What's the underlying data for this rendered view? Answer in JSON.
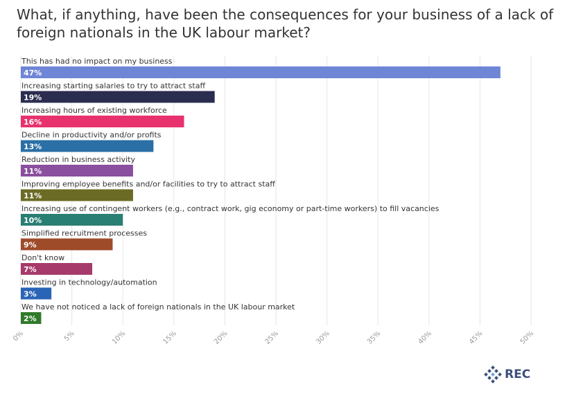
{
  "chart_data": {
    "type": "bar",
    "orientation": "horizontal",
    "title": "What, if anything, have been the consequences for your business of a lack of foreign nationals in the UK labour market?",
    "categories": [
      "This has had no impact on my business",
      "Increasing starting salaries to try to attract staff",
      "Increasing hours of existing workforce",
      "Decline in productivity and/or profits",
      "Reduction in business activity",
      "Improving employee benefits and/or facilities to try to attract staff",
      "Increasing use of contingent workers (e.g., contract work, gig economy or part-time workers) to fill vacancies",
      "Simplified recruitment processes",
      "Don't know",
      "Investing in technology/automation",
      "We have not noticed a lack of foreign nationals in the UK labour market"
    ],
    "values": [
      47,
      19,
      16,
      13,
      11,
      11,
      10,
      9,
      7,
      3,
      2
    ],
    "value_labels": [
      "47%",
      "19%",
      "16%",
      "13%",
      "11%",
      "11%",
      "10%",
      "9%",
      "7%",
      "3%",
      "2%"
    ],
    "colors": [
      "#6f86d6",
      "#2a2d4f",
      "#e8326d",
      "#2a6fa6",
      "#8a4f9e",
      "#6b6b26",
      "#2a7f74",
      "#9e4b2a",
      "#a63a6a",
      "#2a64b6",
      "#2f7a2a"
    ],
    "xlim": [
      0,
      50
    ],
    "xticks": [
      "0%",
      "5%",
      "10%",
      "15%",
      "20%",
      "25%",
      "30%",
      "35%",
      "40%",
      "45%",
      "50%"
    ],
    "xtick_values": [
      0,
      5,
      10,
      15,
      20,
      25,
      30,
      35,
      40,
      45,
      50
    ],
    "grid": true
  },
  "branding": {
    "logo_text": "REC",
    "logo_color": "#3a4f7a"
  }
}
